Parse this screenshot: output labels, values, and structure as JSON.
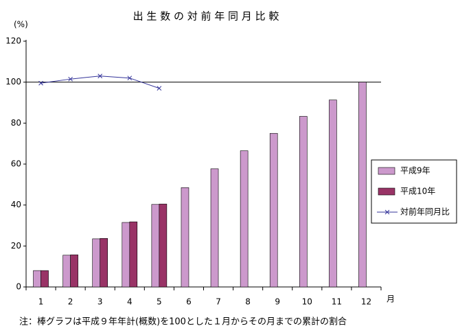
{
  "chart_data": {
    "type": "bar",
    "title": "出 生 数 の 対 前 年 同 月 比 較",
    "y_label": "(%)",
    "x_label": "月",
    "note": "注：棒グラフは平成９年年計(概数)を100とした１月からその月までの累計の割合",
    "categories": [
      "1",
      "2",
      "3",
      "4",
      "5",
      "6",
      "7",
      "8",
      "9",
      "10",
      "11",
      "12"
    ],
    "series": [
      {
        "name": "平成9年",
        "type": "bar",
        "color": "#cc99cc",
        "values": [
          8,
          15.5,
          23.5,
          31.5,
          40.3,
          48.5,
          57.7,
          66.5,
          75,
          83.3,
          91.3,
          100
        ]
      },
      {
        "name": "平成10年",
        "type": "bar",
        "color": "#993366",
        "values": [
          8,
          15.7,
          23.7,
          31.8,
          40.5,
          null,
          null,
          null,
          null,
          null,
          null,
          null
        ]
      },
      {
        "name": "対前年同月比",
        "type": "line",
        "color": "#333399",
        "values": [
          99.5,
          101.5,
          103,
          102,
          97,
          null,
          null,
          null,
          null,
          null,
          null,
          null
        ]
      }
    ],
    "reference_line": 100,
    "ylim": [
      0,
      120
    ],
    "yticks": [
      0,
      20,
      40,
      60,
      80,
      100,
      120
    ],
    "legend": "right"
  }
}
